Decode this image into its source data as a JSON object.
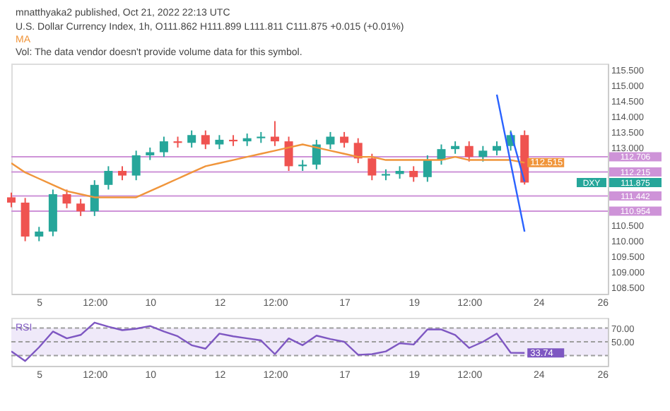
{
  "chart_data": [
    {
      "type": "candlestick",
      "title": "U.S. Dollar Currency Index, 1h, O111.862 H111.899 L111.811 C111.875 +0.015 (+0.01%)",
      "annotations": [
        "mnatthyaka2 published, Oct 21, 2022 22:13 UTC",
        "Vol: The data vendor doesn't provide volume data for this symbol."
      ],
      "categories": [
        null,
        null,
        "5",
        null,
        null,
        null,
        "12:00",
        null,
        null,
        null,
        "10",
        null,
        null,
        null,
        null,
        "12",
        null,
        null,
        null,
        "12:00",
        null,
        null,
        null,
        null,
        "17",
        null,
        null,
        null,
        null,
        "19",
        null,
        null,
        null,
        "12:00",
        null,
        null,
        null,
        null,
        "24",
        null,
        null,
        null,
        null,
        "26"
      ],
      "ylim": [
        108.3,
        115.7
      ],
      "yticks": [
        {
          "value": 108.5,
          "label": "108.500"
        },
        {
          "value": 109,
          "label": "109.000"
        },
        {
          "value": 109.5,
          "label": "109.500"
        },
        {
          "value": 110,
          "label": "110.000"
        },
        {
          "value": 110.5,
          "label": "110.500"
        },
        {
          "value": 113,
          "label": "113.000"
        },
        {
          "value": 113.5,
          "label": "113.500"
        },
        {
          "value": 114,
          "label": "114.000"
        },
        {
          "value": 114.5,
          "label": "114.500"
        },
        {
          "value": 115,
          "label": "115.000"
        },
        {
          "value": 115.5,
          "label": "115.500"
        }
      ],
      "ref_lines": [
        {
          "axis": "y",
          "value": 112.706,
          "label": "112.706",
          "color": "#ce93d8"
        },
        {
          "axis": "y",
          "value": 112.215,
          "label": "112.215",
          "color": "#ce93d8"
        },
        {
          "axis": "y",
          "value": 111.442,
          "label": "111.442",
          "color": "#ce93d8"
        },
        {
          "axis": "y",
          "value": 110.954,
          "label": "110.954",
          "color": "#ce93d8"
        }
      ],
      "series": [
        {
          "name": "DXY",
          "color": "#26a69a",
          "ohlc": [
            [
              111.4,
              111.55,
              111.08,
              111.23
            ],
            [
              111.23,
              111.38,
              109.99,
              110.14
            ],
            [
              110.14,
              110.45,
              109.99,
              110.3
            ],
            [
              110.3,
              111.65,
              110.15,
              111.5
            ],
            [
              111.5,
              111.65,
              111.05,
              111.2
            ],
            [
              111.2,
              111.35,
              110.8,
              110.95
            ],
            [
              110.95,
              111.95,
              110.8,
              111.8
            ],
            [
              111.8,
              112.4,
              111.65,
              112.25
            ],
            [
              112.25,
              112.4,
              111.95,
              112.1
            ],
            [
              112.1,
              112.9,
              111.95,
              112.75
            ],
            [
              112.75,
              113.0,
              112.6,
              112.85
            ],
            [
              112.85,
              113.35,
              112.7,
              113.2
            ],
            [
              113.2,
              113.35,
              113.0,
              113.15
            ],
            [
              113.15,
              113.55,
              113.0,
              113.4
            ],
            [
              113.4,
              113.55,
              112.95,
              113.1
            ],
            [
              113.1,
              113.4,
              112.95,
              113.25
            ],
            [
              113.25,
              113.4,
              113.05,
              113.2
            ],
            [
              113.2,
              113.45,
              113.05,
              113.3
            ],
            [
              113.3,
              113.5,
              113.15,
              113.35
            ],
            [
              113.35,
              113.85,
              113.05,
              113.2
            ],
            [
              113.2,
              113.35,
              112.25,
              112.4
            ],
            [
              112.4,
              112.6,
              112.25,
              112.45
            ],
            [
              112.45,
              113.25,
              112.3,
              113.1
            ],
            [
              113.1,
              113.5,
              112.95,
              113.35
            ],
            [
              113.35,
              113.5,
              113.0,
              113.15
            ],
            [
              113.15,
              113.3,
              112.5,
              112.65
            ],
            [
              112.65,
              112.8,
              111.95,
              112.1
            ],
            [
              112.1,
              112.3,
              111.95,
              112.15
            ],
            [
              112.15,
              112.4,
              112.0,
              112.25
            ],
            [
              112.25,
              112.4,
              111.9,
              112.05
            ],
            [
              112.05,
              112.75,
              111.9,
              112.6
            ],
            [
              112.6,
              113.1,
              112.45,
              112.95
            ],
            [
              112.95,
              113.2,
              112.8,
              113.05
            ],
            [
              113.05,
              113.2,
              112.55,
              112.7
            ],
            [
              112.7,
              113.05,
              112.55,
              112.9
            ],
            [
              112.9,
              113.2,
              112.75,
              113.05
            ],
            [
              113.05,
              113.55,
              112.9,
              113.4
            ],
            [
              113.4,
              113.55,
              111.81,
              111.875
            ],
            null,
            null,
            null,
            null,
            null,
            null
          ],
          "colors": [
            "#ef5350",
            "#ef5350",
            "#26a69a",
            "#26a69a",
            "#ef5350",
            "#ef5350",
            "#26a69a",
            "#26a69a",
            "#ef5350",
            "#26a69a",
            "#26a69a",
            "#26a69a",
            "#ef5350",
            "#26a69a",
            "#ef5350",
            "#26a69a",
            "#ef5350",
            "#26a69a",
            "#26a69a",
            "#ef5350",
            "#ef5350",
            "#26a69a",
            "#26a69a",
            "#26a69a",
            "#ef5350",
            "#ef5350",
            "#ef5350",
            "#26a69a",
            "#26a69a",
            "#ef5350",
            "#26a69a",
            "#26a69a",
            "#26a69a",
            "#ef5350",
            "#26a69a",
            "#26a69a",
            "#26a69a",
            "#ef5350",
            null,
            null,
            null,
            null,
            null,
            null
          ],
          "value_labels": [
            null,
            null,
            null,
            null,
            null,
            null,
            null,
            null,
            null,
            null,
            null,
            null,
            null,
            null,
            null,
            null,
            null,
            null,
            null,
            null,
            null,
            null,
            null,
            null,
            null,
            null,
            null,
            null,
            null,
            null,
            null,
            null,
            null,
            null,
            null,
            null,
            null,
            "111.875",
            null,
            null,
            null,
            null,
            null,
            null
          ]
        },
        {
          "name": "MA",
          "type": "line",
          "color": "#f0953b",
          "values": [
            112.5,
            112.2,
            112.0,
            111.8,
            111.6,
            111.5,
            111.4,
            111.4,
            111.4,
            111.4,
            111.6,
            111.8,
            112.0,
            112.2,
            112.4,
            112.5,
            112.6,
            112.7,
            112.8,
            112.9,
            113.0,
            113.1,
            113.0,
            112.9,
            112.8,
            112.7,
            112.7,
            112.6,
            112.6,
            112.6,
            112.6,
            112.6,
            112.7,
            112.6,
            112.6,
            112.6,
            112.6,
            112.515,
            null,
            null,
            null,
            null,
            null,
            null
          ],
          "value_labels": [
            null,
            null,
            null,
            null,
            null,
            null,
            null,
            null,
            null,
            null,
            null,
            null,
            null,
            null,
            null,
            null,
            null,
            null,
            null,
            null,
            null,
            null,
            null,
            null,
            null,
            null,
            null,
            null,
            null,
            null,
            null,
            null,
            null,
            null,
            null,
            null,
            null,
            "112.515",
            null,
            null,
            null,
            null,
            null,
            null
          ]
        },
        {
          "type": "line",
          "color": "#2962ff",
          "values": [
            null,
            null,
            null,
            null,
            null,
            null,
            null,
            null,
            null,
            null,
            null,
            null,
            null,
            null,
            null,
            null,
            null,
            null,
            null,
            null,
            null,
            null,
            null,
            null,
            null,
            null,
            null,
            null,
            null,
            null,
            null,
            null,
            null,
            null,
            null,
            114.7,
            null,
            110.3,
            null,
            null,
            null,
            null,
            null,
            null
          ]
        },
        {
          "type": "line",
          "color": "#2962ff",
          "values": [
            null,
            null,
            null,
            null,
            null,
            null,
            null,
            null,
            null,
            null,
            null,
            null,
            null,
            null,
            null,
            null,
            null,
            null,
            null,
            null,
            null,
            null,
            null,
            null,
            null,
            null,
            null,
            null,
            null,
            null,
            null,
            null,
            null,
            null,
            null,
            null,
            113.5,
            111.9,
            null,
            null,
            null,
            null,
            null,
            null
          ]
        }
      ]
    },
    {
      "type": "line",
      "categories": [
        null,
        null,
        "5",
        null,
        null,
        null,
        "12:00",
        null,
        null,
        null,
        "10",
        null,
        null,
        null,
        null,
        "12",
        null,
        null,
        null,
        "12:00",
        null,
        null,
        null,
        null,
        "17",
        null,
        null,
        null,
        null,
        "19",
        null,
        null,
        null,
        "12:00",
        null,
        null,
        null,
        null,
        "24",
        null,
        null,
        null,
        null,
        "26"
      ],
      "ylim": [
        15,
        85
      ],
      "yticks": [
        {
          "value": 70,
          "label": "70.00"
        },
        {
          "value": 50,
          "label": "50.00"
        }
      ],
      "bands": [
        {
          "axis": "y",
          "from": 30,
          "to": 70,
          "color": "#efe9f9"
        }
      ],
      "ref_lines": [
        {
          "axis": "y",
          "value": 70,
          "color": "#9e9e9e",
          "line_style": "dashed"
        },
        {
          "axis": "y",
          "value": 50,
          "color": "#9e9e9e",
          "line_style": "dashed"
        },
        {
          "axis": "y",
          "value": 30,
          "color": "#9e9e9e",
          "line_style": "dashed"
        }
      ],
      "series": [
        {
          "name": "RSI",
          "color": "#7e57c2",
          "values": [
            36,
            22,
            42,
            65,
            55,
            60,
            78,
            72,
            67,
            69,
            73,
            65,
            58,
            45,
            40,
            62,
            58,
            55,
            52,
            32,
            55,
            45,
            59,
            54,
            50,
            31,
            32,
            36,
            48,
            46,
            68,
            68,
            60,
            41,
            50,
            62,
            34,
            33.74,
            null,
            null,
            null,
            null,
            null,
            null
          ],
          "value_labels": [
            null,
            null,
            null,
            null,
            null,
            null,
            null,
            null,
            null,
            null,
            null,
            null,
            null,
            null,
            null,
            null,
            null,
            null,
            null,
            null,
            null,
            null,
            null,
            null,
            null,
            null,
            null,
            null,
            null,
            null,
            null,
            null,
            null,
            null,
            null,
            null,
            null,
            "33.74",
            null,
            null,
            null,
            null,
            null,
            null
          ]
        }
      ]
    }
  ]
}
